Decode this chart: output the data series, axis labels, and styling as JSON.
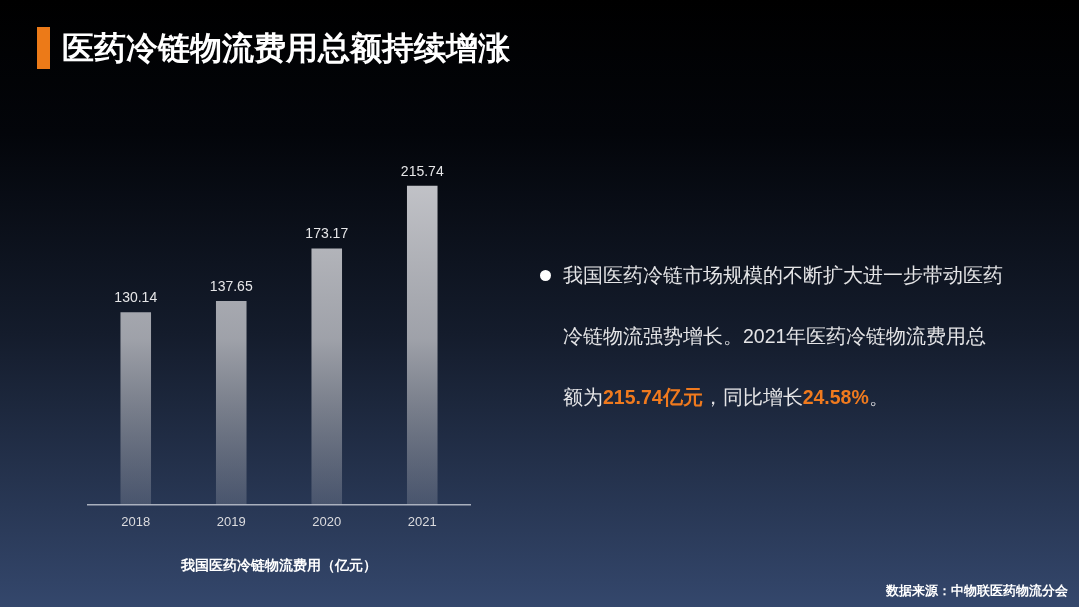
{
  "chart_data": {
    "type": "bar",
    "title": "医药冷链物流费用总额持续增涨",
    "xlabel": "我国医药冷链物流费用（亿元）",
    "categories": [
      "2018",
      "2019",
      "2020",
      "2021"
    ],
    "values": [
      130.14,
      137.65,
      173.17,
      215.74
    ],
    "color": "#cdced3",
    "data_labels": true,
    "grid": false,
    "legend": false,
    "tick_labels": "x",
    "annotations": [
      "我国医药冷链市场规模的不断扩大进一步带动医药冷链物流强势增长。2021年医药冷链物流费用总额为215.74亿元，同比增长24.58%。",
      "数据来源：中物联医药物流分会"
    ]
  }
}
